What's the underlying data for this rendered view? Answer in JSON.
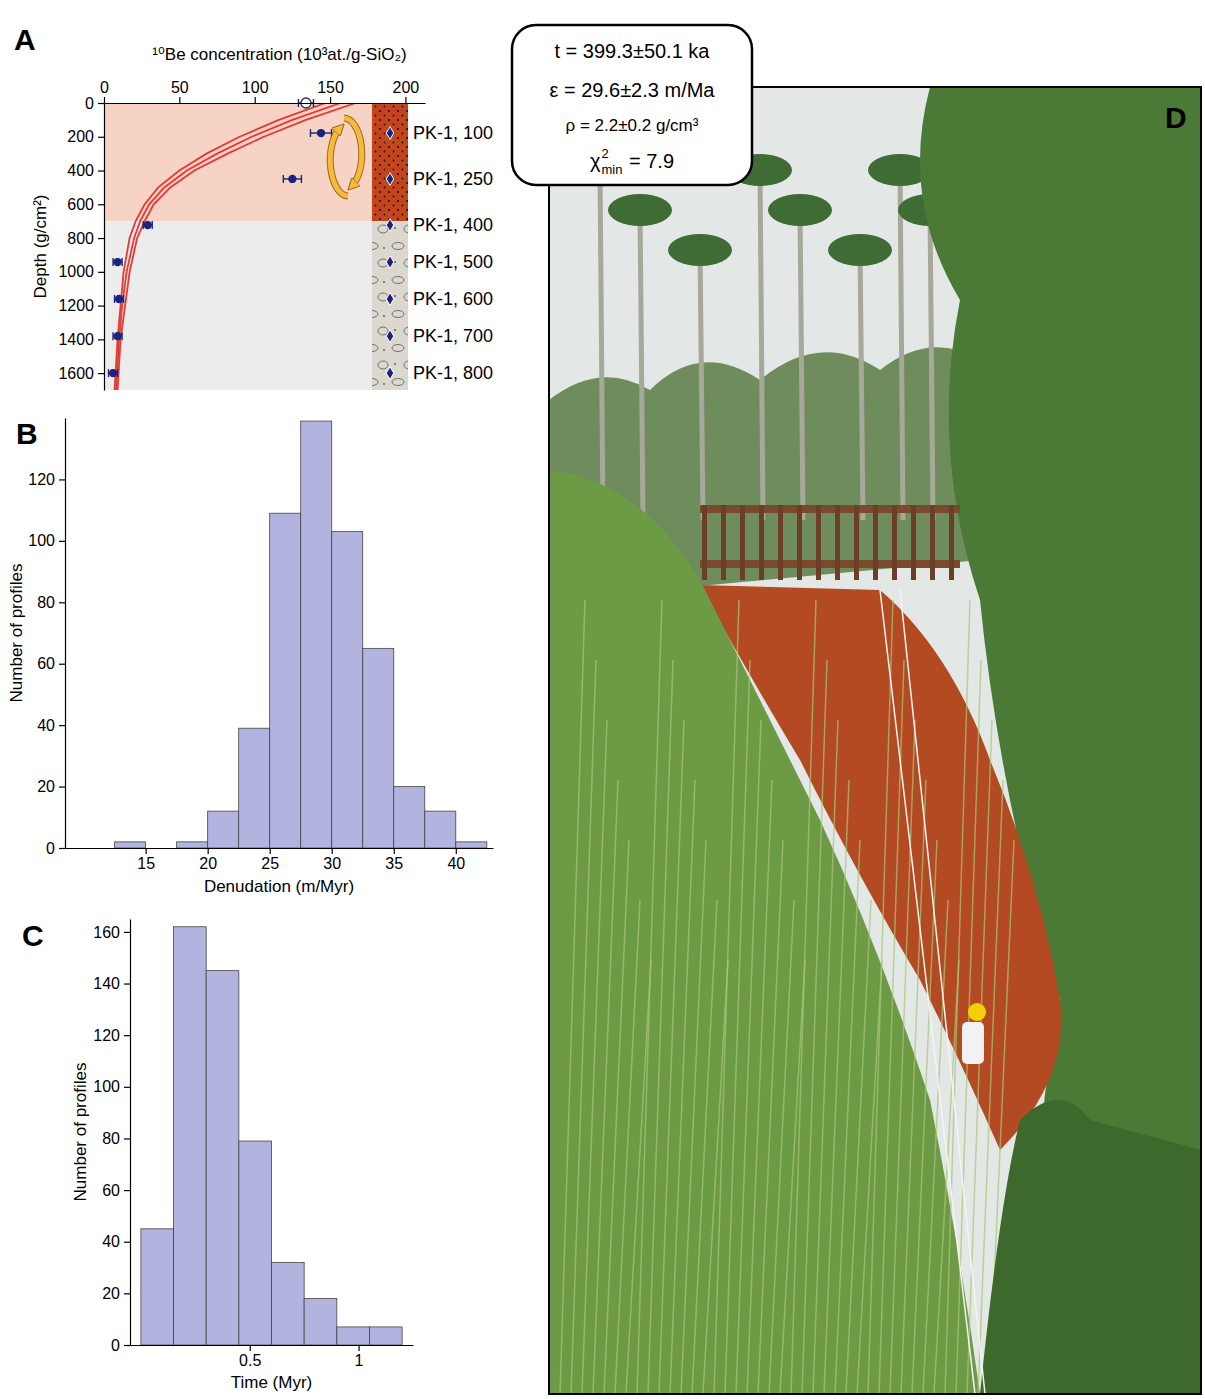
{
  "chart_data": [
    {
      "panel": "A",
      "type": "scatter",
      "x_label": "¹⁰Be concentration (10³at./g-SiO₂)",
      "y_label": "Depth (g/cm²)",
      "xlim": [
        0,
        213
      ],
      "xticks": [
        0,
        50,
        100,
        150,
        200
      ],
      "ylim": [
        0,
        1700
      ],
      "yticks": [
        0,
        200,
        400,
        600,
        800,
        1000,
        1200,
        1400,
        1600
      ],
      "soil_depth": [
        0,
        700
      ],
      "series": [
        {
          "type": "scatter",
          "marker": "circle-open",
          "color": "#1a237e",
          "x": [
            134
          ],
          "y": [
            0
          ],
          "x_error": [
            5
          ]
        },
        {
          "type": "scatter",
          "marker": "circle",
          "color": "#1a237e",
          "x": [
            144,
            125,
            29,
            9,
            10,
            9,
            6
          ],
          "y": [
            178,
            450,
            723,
            942,
            1161,
            1381,
            1600
          ],
          "x_error": [
            7,
            6,
            3,
            3,
            3,
            3,
            3
          ],
          "labels": [
            "PK-1, 100",
            "PK-1, 250",
            "PK-1, 400",
            "PK-1, 500",
            "PK-1, 600",
            "PK-1, 700",
            "PK-1, 800"
          ]
        },
        {
          "type": "line",
          "color": "#e53935",
          "x": [
            147,
            116,
            90,
            68,
            50,
            36,
            27,
            21,
            17,
            13,
            11,
            9,
            7
          ],
          "y": [
            0,
            100,
            200,
            300,
            400,
            500,
            600,
            700,
            800,
            1000,
            1200,
            1400,
            1700
          ]
        },
        {
          "type": "line",
          "color": "#e53935",
          "x": [
            157,
            125,
            98,
            75,
            55,
            40,
            30,
            24,
            20,
            15,
            12,
            10,
            8
          ],
          "y": [
            0,
            100,
            200,
            300,
            400,
            500,
            600,
            700,
            800,
            1000,
            1200,
            1400,
            1700
          ]
        },
        {
          "type": "line",
          "color": "#e53935",
          "x": [
            167,
            134,
            106,
            82,
            60,
            44,
            33,
            27,
            22,
            17,
            14,
            11,
            9
          ],
          "y": [
            0,
            100,
            200,
            300,
            400,
            500,
            600,
            700,
            800,
            1000,
            1200,
            1400,
            1700
          ]
        }
      ]
    },
    {
      "panel": "B",
      "type": "histogram",
      "x_label": "Denudation (m/Myr)",
      "y_label": "Number of profiles",
      "xlim": [
        8.5,
        43
      ],
      "xticks": [
        15,
        20,
        25,
        30,
        35,
        40
      ],
      "ylim": [
        0,
        140
      ],
      "yticks": [
        0,
        20,
        40,
        60,
        80,
        100,
        120
      ],
      "bins": [
        12.5,
        15,
        17.5,
        20,
        22.5,
        25,
        27.5,
        30,
        32.5,
        35,
        37.5,
        40,
        42.5
      ],
      "values": [
        2,
        0,
        2,
        12,
        39,
        109,
        139,
        103,
        65,
        20,
        12,
        2
      ],
      "color": "#b3b3e0"
    },
    {
      "panel": "C",
      "type": "histogram",
      "x_label": "Time (Myr)",
      "y_label": "Number of profiles",
      "xlim": [
        -0.05,
        1.25
      ],
      "xticks": [
        0.5,
        1
      ],
      "ylim": [
        0,
        165
      ],
      "yticks": [
        0,
        20,
        40,
        60,
        80,
        100,
        120,
        140,
        160
      ],
      "bins": [
        0,
        0.15,
        0.3,
        0.45,
        0.6,
        0.75,
        0.9,
        1.05,
        1.2
      ],
      "values": [
        45,
        162,
        145,
        79,
        32,
        18,
        7,
        7
      ],
      "color": "#b3b3e0"
    }
  ],
  "photo": {
    "panel": "D",
    "callout": [
      "t = 399.3±50.1 ka",
      "ε = 29.6±2.3 m/Ma",
      "ρ = 2.2±0.2 g/cm³",
      {
        "symbol": "χ",
        "superscript": "2",
        "subscript": "min",
        "text": " = 7.9"
      }
    ]
  }
}
